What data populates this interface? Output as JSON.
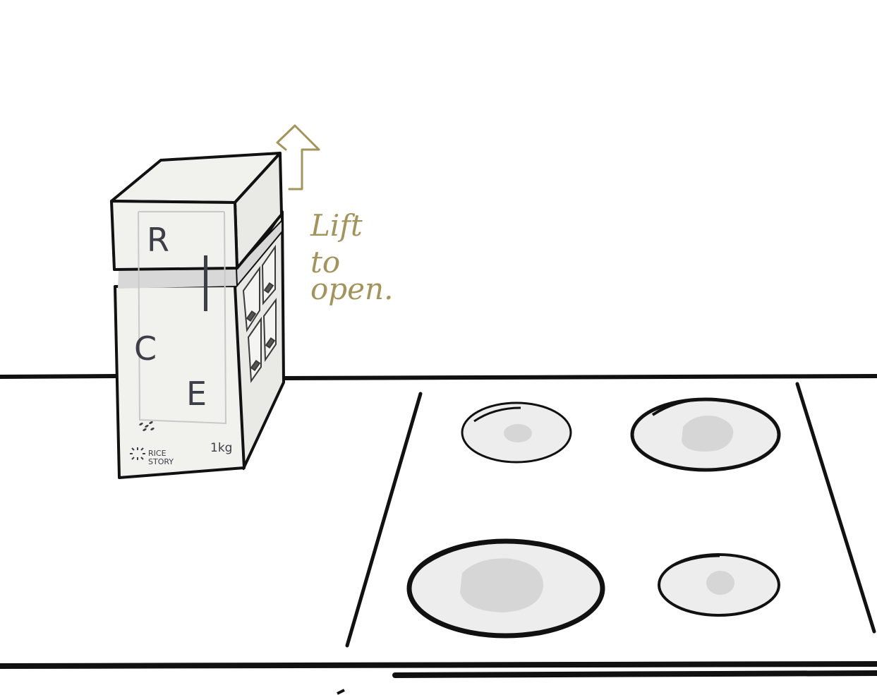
{
  "box": {
    "letters": [
      "R",
      "I",
      "C",
      "E"
    ],
    "brand_line1": "RICE",
    "brand_line2": "STORY",
    "weight": "1kg"
  },
  "annotation": {
    "line1": "Lift",
    "line2": "to",
    "line3": "open."
  },
  "colors": {
    "ink": "#111111",
    "box_fill": "#f1f1ee",
    "box_side": "#e9e9e6",
    "band": "#d8d8d8",
    "annotation": "#a3935c",
    "burner_fill": "#ededed",
    "burner_spot": "#d6d6d6"
  },
  "icons": [
    "up-arrow-icon",
    "rice-story-logo-icon",
    "rice-grain-icon"
  ]
}
